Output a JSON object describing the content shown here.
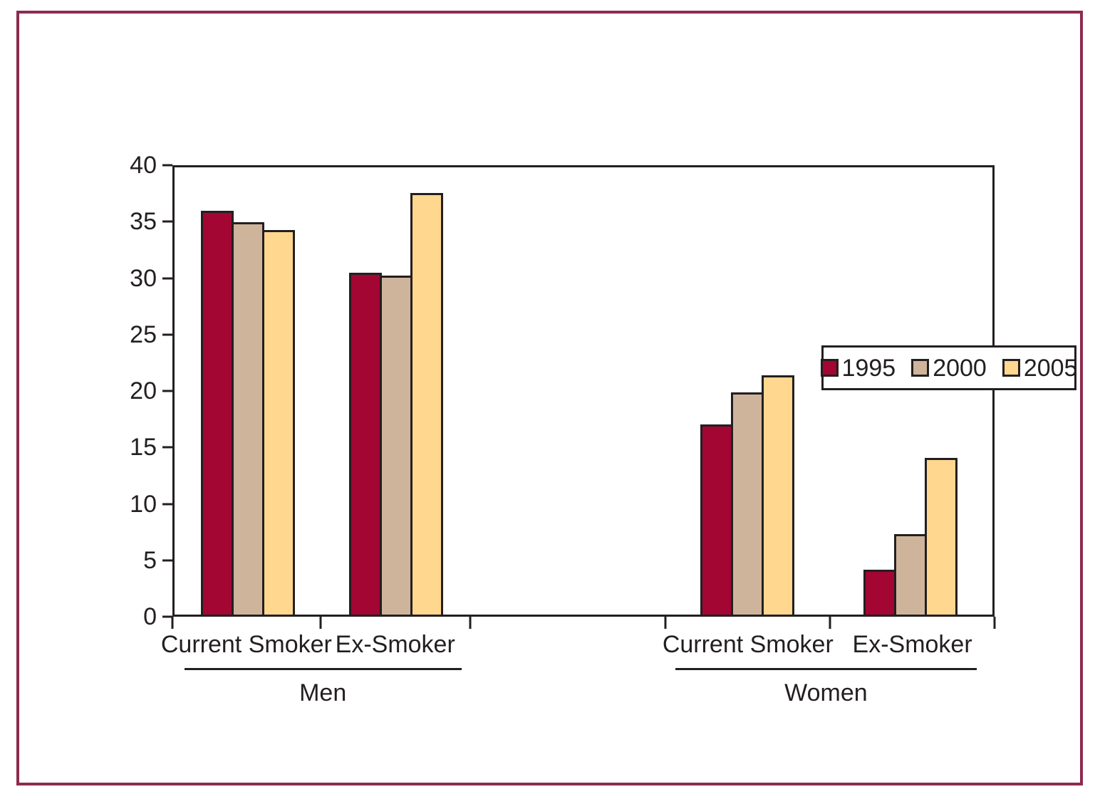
{
  "figure": {
    "frame_color": "#8e2a4f",
    "line_color": "#231f20"
  },
  "chart_data": {
    "type": "bar",
    "title": "",
    "xlabel": "",
    "ylabel": "",
    "ylim": [
      0,
      40
    ],
    "yticks": [
      0,
      5,
      10,
      15,
      20,
      25,
      30,
      35,
      40
    ],
    "grid": false,
    "legend_position": "top-right-inside",
    "series": [
      {
        "name": "1995",
        "color": "#a30633"
      },
      {
        "name": "2000",
        "color": "#cfb49c"
      },
      {
        "name": "2005",
        "color": "#ffd78e"
      }
    ],
    "groups": [
      {
        "section": "Men",
        "category": "Current Smoker",
        "values": [
          36.1,
          35.1,
          34.4
        ]
      },
      {
        "section": "Men",
        "category": "Ex-Smoker",
        "values": [
          30.6,
          30.3,
          37.7
        ]
      },
      {
        "section": "Women",
        "category": "Current Smoker",
        "values": [
          17.0,
          19.9,
          21.4
        ]
      },
      {
        "section": "Women",
        "category": "Ex-Smoker",
        "values": [
          4.0,
          7.2,
          14.0
        ]
      }
    ],
    "section_labels": [
      "Men",
      "Women"
    ]
  }
}
